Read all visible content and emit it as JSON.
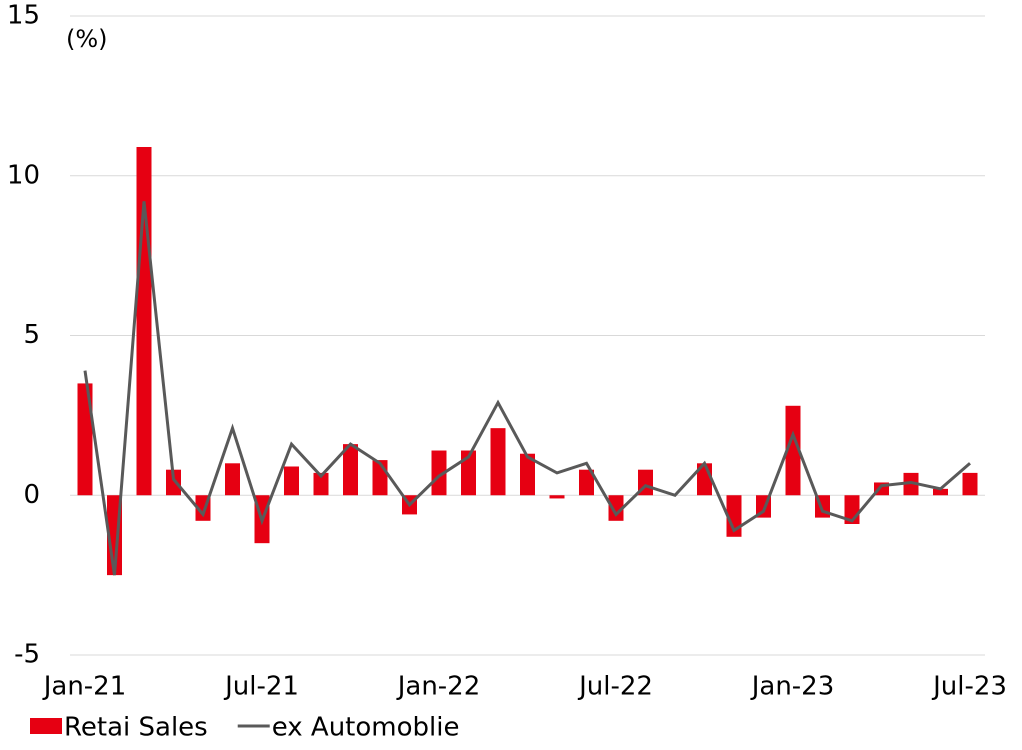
{
  "chart_data": {
    "type": "bar_line",
    "unit_label": "(%)",
    "categories": [
      "Jan-21",
      null,
      null,
      null,
      null,
      null,
      "Jul-21",
      null,
      null,
      null,
      null,
      null,
      "Jan-22",
      null,
      null,
      null,
      null,
      null,
      "Jul-22",
      null,
      null,
      null,
      null,
      null,
      "Jan-23",
      null,
      null,
      null,
      null,
      null,
      "Jul-23"
    ],
    "series": [
      {
        "name": "Retai Sales",
        "type": "bar",
        "color": "#e60012",
        "values": [
          3.5,
          -2.5,
          10.9,
          0.8,
          -0.8,
          1.0,
          -1.5,
          0.9,
          0.7,
          1.6,
          1.1,
          -0.6,
          1.4,
          1.4,
          2.1,
          1.3,
          -0.1,
          0.8,
          -0.8,
          0.8,
          0,
          1.0,
          -1.3,
          -0.7,
          2.8,
          -0.7,
          -0.9,
          0.4,
          0.7,
          0.2,
          0.7
        ]
      },
      {
        "name": "ex Automoblie",
        "type": "line",
        "color": "#595959",
        "values": [
          3.9,
          -2.5,
          9.2,
          0.5,
          -0.6,
          2.1,
          -0.8,
          1.6,
          0.6,
          1.6,
          1.0,
          -0.3,
          0.6,
          1.2,
          2.9,
          1.2,
          0.7,
          1.0,
          -0.6,
          0.3,
          0.0,
          1.0,
          -1.1,
          -0.5,
          1.9,
          -0.5,
          -0.8,
          0.3,
          0.4,
          0.2,
          1.0
        ]
      }
    ],
    "ylim": [
      -5,
      15
    ],
    "yticks": [
      -5,
      0,
      5,
      10,
      15
    ],
    "grid": true
  }
}
